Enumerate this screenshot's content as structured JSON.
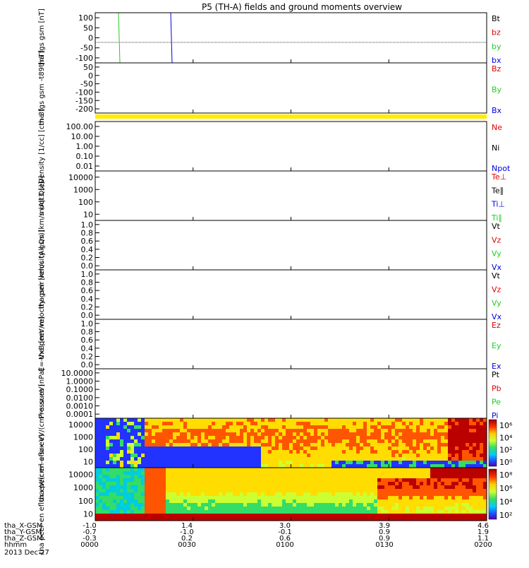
{
  "title": "P5 (TH-A) fields and ground moments overview",
  "colors": {
    "black": "#000000",
    "red": "#e00000",
    "green": "#22cc22",
    "blue": "#0000e0",
    "yellow": "#ffee00"
  },
  "chart_data": [
    {
      "type": "line",
      "ylabel": "tha fgs gsm [nT]",
      "yticks": [
        "100",
        "50",
        "0",
        "-50",
        "-100"
      ],
      "legend": [
        {
          "name": "Bt",
          "color": "black"
        },
        {
          "name": "bz",
          "color": "red"
        },
        {
          "name": "by",
          "color": "green"
        },
        {
          "name": "bx",
          "color": "blue"
        }
      ]
    },
    {
      "type": "line",
      "ylabel": "tha fgs gsm -t89 [nT]",
      "yticks": [
        "50",
        "0",
        "-50",
        "-100",
        "-150",
        "-200"
      ],
      "legend": [
        {
          "name": "Bz",
          "color": "red"
        },
        {
          "name": "By",
          "color": "green"
        },
        {
          "name": "Bx",
          "color": "blue"
        }
      ]
    },
    {
      "type": "line",
      "ylabel": "Density [1/cc] [cm-3]",
      "yticks": [
        "100.00",
        "10.00",
        "1.00",
        "0.10",
        "0.01"
      ],
      "legend": [
        {
          "name": "Ne",
          "color": "red"
        },
        {
          "name": "Ni",
          "color": "black"
        },
        {
          "name": "Npot",
          "color": "blue"
        }
      ]
    },
    {
      "type": "line",
      "ylabel": "moqt3 [eV]",
      "yticks": [
        "10000",
        "1000",
        "100",
        "10"
      ],
      "legend": [
        {
          "name": "Te⊥",
          "color": "red"
        },
        {
          "name": "Te∥",
          "color": "black"
        },
        {
          "name": "Ti⊥",
          "color": "blue"
        },
        {
          "name": "Ti∥",
          "color": "green"
        }
      ]
    },
    {
      "type": "line",
      "ylabel": "tha peir velocity gsm [km/s (All Qs)]",
      "yticks": [
        "1.0",
        "0.8",
        "0.6",
        "0.4",
        "0.2",
        "0.0"
      ],
      "legend": [
        {
          "name": "Vt",
          "color": "black"
        },
        {
          "name": "Vz",
          "color": "red"
        },
        {
          "name": "Vy",
          "color": "green"
        },
        {
          "name": "Vx",
          "color": "blue"
        }
      ]
    },
    {
      "type": "line",
      "ylabel": "tha peer velocity gsm [km/s (All Qs)]",
      "yticks": [
        "1.0",
        "0.8",
        "0.6",
        "0.4",
        "0.2",
        "0.0"
      ],
      "legend": [
        {
          "name": "Vt",
          "color": "black"
        },
        {
          "name": "Vz",
          "color": "red"
        },
        {
          "name": "Vy",
          "color": "green"
        },
        {
          "name": "Vx",
          "color": "blue"
        }
      ]
    },
    {
      "type": "line",
      "ylabel": "E=-VxB [mV/m]",
      "yticks": [
        "1.0",
        "0.8",
        "0.6",
        "0.4",
        "0.2",
        "0.0"
      ],
      "legend": [
        {
          "name": "Ez",
          "color": "red"
        },
        {
          "name": "Ey",
          "color": "green"
        },
        {
          "name": "Ex",
          "color": "blue"
        }
      ]
    },
    {
      "type": "line",
      "ylabel": "Pressure [nPa]",
      "yticks": [
        "10.0000",
        "1.0000",
        "0.1000",
        "0.0100",
        "0.0010",
        "0.0001"
      ],
      "legend": [
        {
          "name": "Pt",
          "color": "black"
        },
        {
          "name": "Pb",
          "color": "red"
        },
        {
          "name": "Pe",
          "color": "green"
        },
        {
          "name": "Pi",
          "color": "blue"
        }
      ]
    },
    {
      "type": "heatmap",
      "ylabel": "tha peir en eflux eV/(cm²-s-sr-eV)",
      "yticks": [
        "10000",
        "1000",
        "100",
        "10"
      ],
      "colorbar": [
        "10⁶",
        "10⁴",
        "10²",
        "10⁰"
      ]
    },
    {
      "type": "heatmap",
      "ylabel": "tha peer en eflux eV/(cm²-s-sr-eV)",
      "yticks": [
        "10000",
        "1000",
        "100",
        "10"
      ],
      "colorbar": [
        "10⁸",
        "10⁶",
        "10⁴",
        "10²"
      ]
    }
  ],
  "xaxis": {
    "rows": [
      {
        "label": "tha_X-GSM",
        "values": [
          "-1.0",
          "1.4",
          "3.0",
          "3.9",
          "4.6"
        ]
      },
      {
        "label": "tha_Y-GSM",
        "values": [
          "-0.7",
          "-1.0",
          "-0.1",
          "0.9",
          "1.9"
        ]
      },
      {
        "label": "tha_Z-GSM",
        "values": [
          "-0.3",
          "0.2",
          "0.6",
          "0.9",
          "1.1"
        ]
      },
      {
        "label": "hhmm",
        "values": [
          "0000",
          "0030",
          "0100",
          "0130",
          "0200"
        ]
      }
    ],
    "date": "2013 Dec 27"
  }
}
